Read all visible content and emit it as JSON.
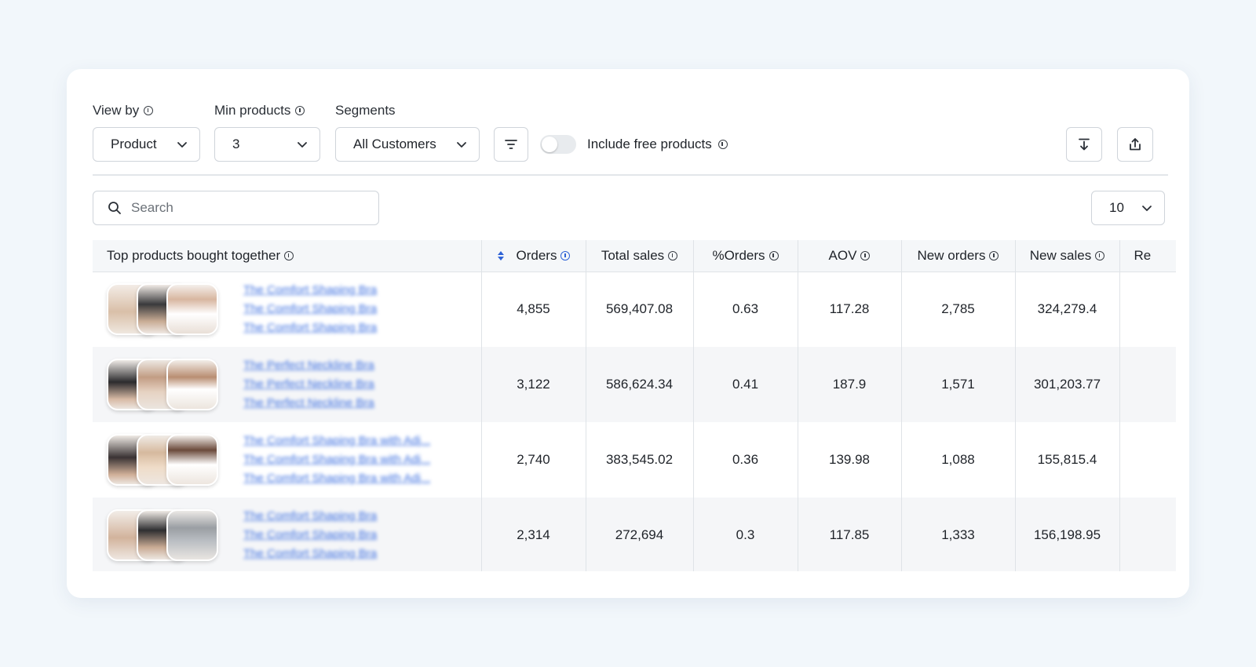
{
  "filters": {
    "view_by": {
      "label": "View by",
      "value": "Product"
    },
    "min_products": {
      "label": "Min products",
      "value": "3"
    },
    "segments": {
      "label": "Segments",
      "value": "All Customers"
    },
    "include_free": {
      "label": "Include free products",
      "enabled": false
    }
  },
  "search": {
    "placeholder": "Search",
    "value": ""
  },
  "page_size": "10",
  "table": {
    "columns": [
      "Top products bought together",
      "Orders",
      "Total sales",
      "%Orders",
      "AOV",
      "New orders",
      "New sales",
      "Re"
    ],
    "sorted_column": "Orders",
    "rows": [
      {
        "products": [
          "The Comfort Shaping Bra",
          "The Comfort Shaping Bra",
          "The Comfort Shaping Bra"
        ],
        "orders": "4,855",
        "total_sales": "569,407.08",
        "pct_orders": "0.63",
        "aov": "117.28",
        "new_orders": "2,785",
        "new_sales": "324,279.4"
      },
      {
        "products": [
          "The Perfect Neckline Bra",
          "The Perfect Neckline Bra",
          "The Perfect Neckline Bra"
        ],
        "orders": "3,122",
        "total_sales": "586,624.34",
        "pct_orders": "0.41",
        "aov": "187.9",
        "new_orders": "1,571",
        "new_sales": "301,203.77"
      },
      {
        "products": [
          "The Comfort Shaping Bra with Adj...",
          "The Comfort Shaping Bra with Adj...",
          "The Comfort Shaping Bra with Adj..."
        ],
        "orders": "2,740",
        "total_sales": "383,545.02",
        "pct_orders": "0.36",
        "aov": "139.98",
        "new_orders": "1,088",
        "new_sales": "155,815.4"
      },
      {
        "products": [
          "The Comfort Shaping Bra",
          "The Comfort Shaping Bra",
          "The Comfort Shaping Bra"
        ],
        "orders": "2,314",
        "total_sales": "272,694",
        "pct_orders": "0.3",
        "aov": "117.85",
        "new_orders": "1,333",
        "new_sales": "156,198.95"
      }
    ]
  },
  "colors": {
    "link": "#3c6fe0",
    "sort_accent": "#2f63d6",
    "background": "#f2f7fb"
  }
}
